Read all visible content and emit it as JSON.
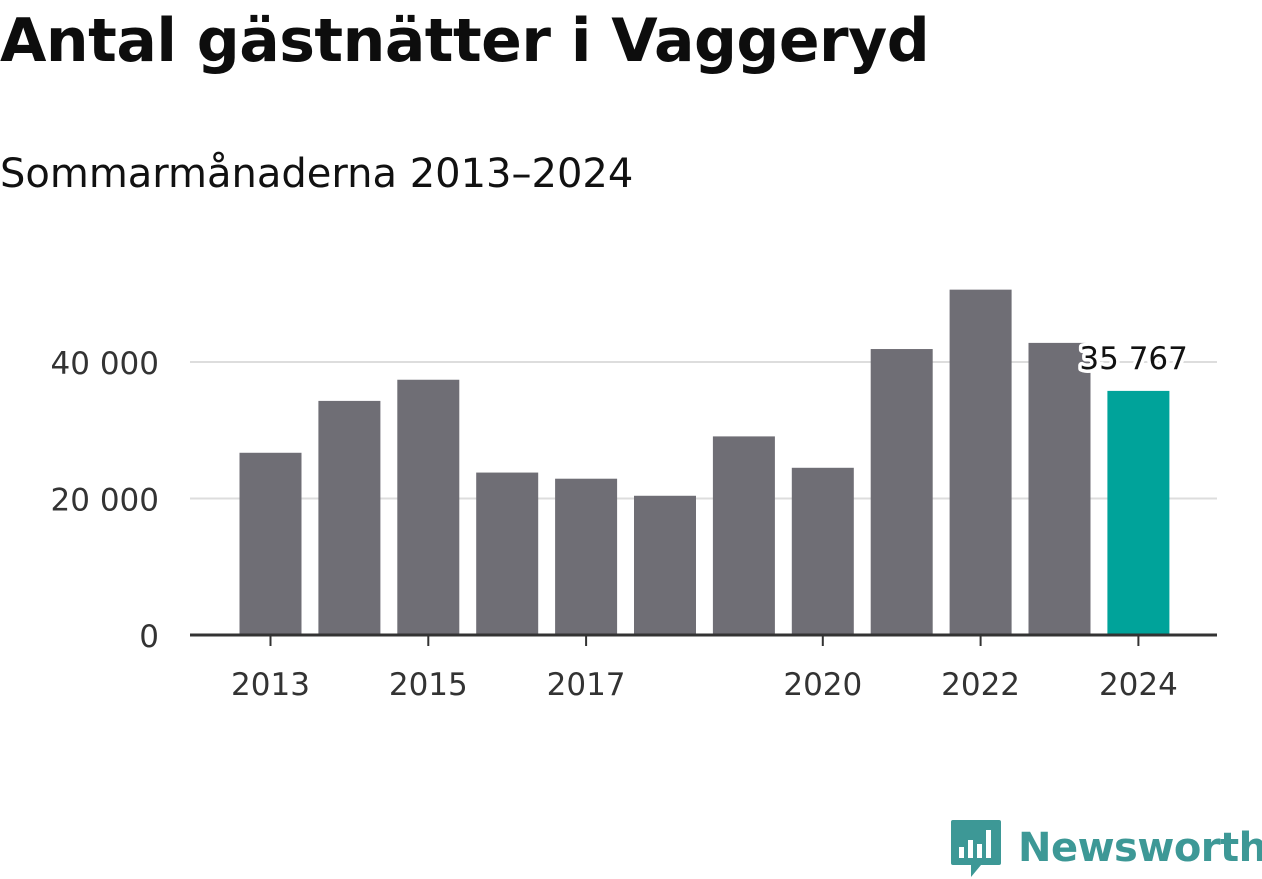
{
  "title": "Antal gästnätter i Vaggeryd",
  "subtitle": "Sommarmånaderna 2013–2024",
  "brand": {
    "name": "Newsworthy",
    "logo_icon": "bar-chart-speech-bubble-icon",
    "color": "#3d9896"
  },
  "colors": {
    "bar": "#6f6e75",
    "highlight": "#00a39a",
    "grid": "#dddddd",
    "axis": "#333333",
    "text": "#333333"
  },
  "chart_data": {
    "type": "bar",
    "title": "Antal gästnätter i Vaggeryd",
    "subtitle": "Sommarmånaderna 2013–2024",
    "xlabel": "",
    "ylabel": "",
    "categories": [
      "2013",
      "2014",
      "2015",
      "2016",
      "2017",
      "2018",
      "2019",
      "2020",
      "2021",
      "2022",
      "2023",
      "2024"
    ],
    "values": [
      26700,
      34300,
      37400,
      23800,
      22900,
      20400,
      29100,
      24500,
      41900,
      50600,
      42800,
      35767
    ],
    "x_tick_labels": [
      "2013",
      "2015",
      "2017",
      "2020",
      "2022",
      "2024"
    ],
    "y_ticks": [
      0,
      20000,
      40000
    ],
    "y_tick_labels": [
      "0",
      "20 000",
      "40 000"
    ],
    "ylim": [
      0,
      52000
    ],
    "grid": true,
    "legend": "none",
    "highlight": {
      "category": "2024",
      "label": "35 767"
    }
  }
}
